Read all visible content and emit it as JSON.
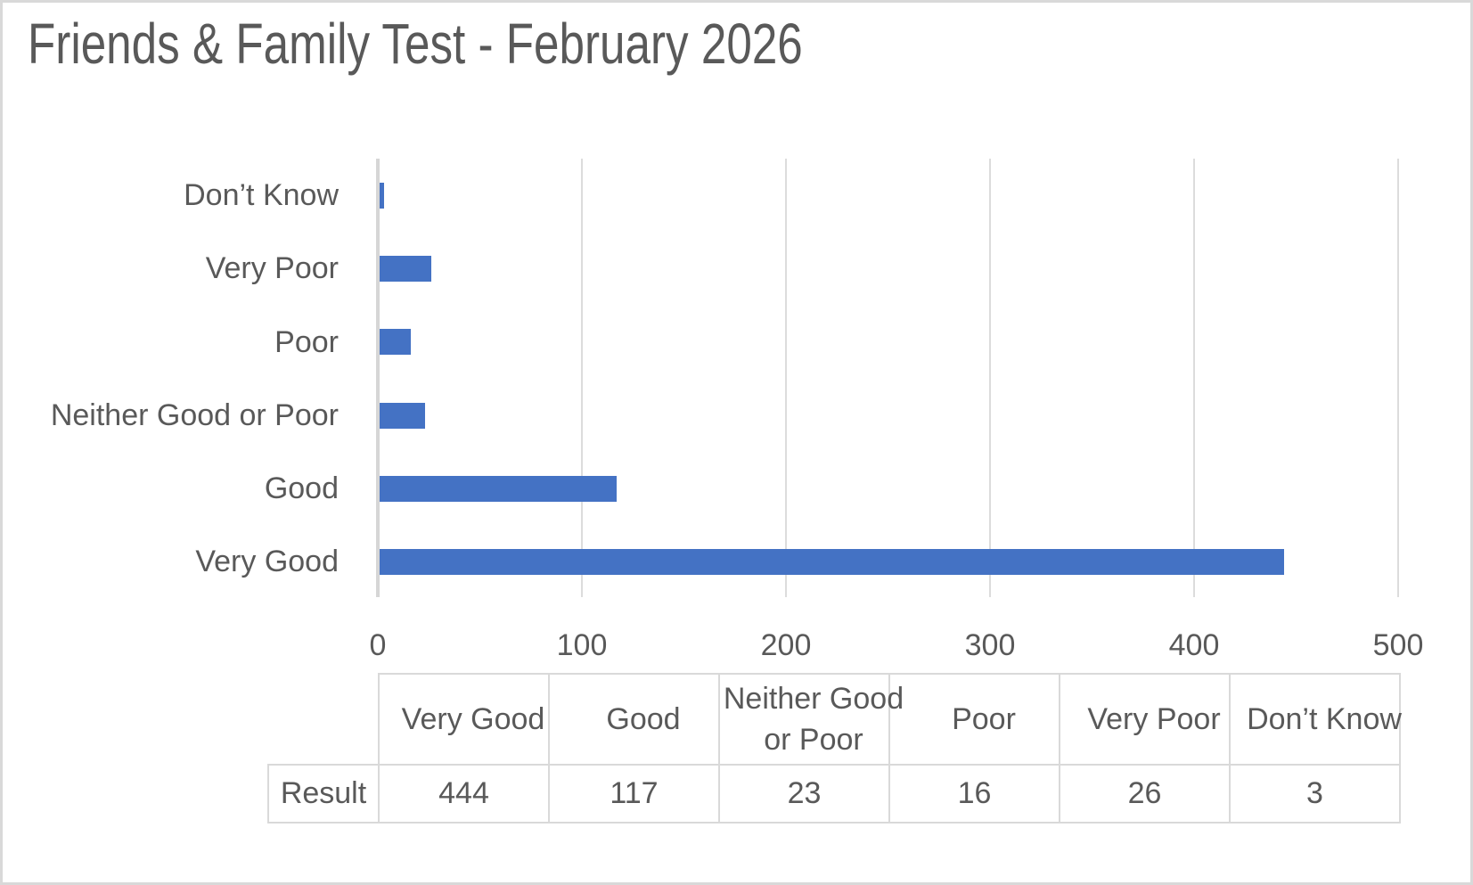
{
  "frame": {
    "background": "#ffffff",
    "border_color": "#d9d9d9"
  },
  "header": {
    "title": "Friends & Family Test - February 2026",
    "color": "#595959"
  },
  "chart_data": {
    "type": "bar",
    "orientation": "horizontal",
    "title": "Friends & Family Test - February 2026",
    "categories": [
      "Don’t Know",
      "Very Poor",
      "Poor",
      "Neither Good or Poor",
      "Good",
      "Very Good"
    ],
    "category_order": "top-to-bottom",
    "series": [
      {
        "name": "Result",
        "values": [
          3,
          26,
          16,
          23,
          117,
          444
        ]
      }
    ],
    "xlabel": "",
    "ylabel": "",
    "x_axis": {
      "min": 0,
      "max": 500,
      "tick_step": 100,
      "tick_labels": [
        "0",
        "100",
        "200",
        "300",
        "400",
        "500"
      ]
    },
    "grid": {
      "vertical_gridlines": true,
      "gridline_color": "#dcdcdc",
      "axis_line_color": "#d6d6d6"
    },
    "legend": "none",
    "bar_color": "#4472c4",
    "text_color": "#595959"
  },
  "table": {
    "border_color": "#d9d9d9",
    "column_headers": [
      "Very Good",
      "Good",
      "Neither Good or Poor",
      "Poor",
      "Very Poor",
      "Don’t Know"
    ],
    "rows": [
      {
        "label": "Result",
        "values": [
          "444",
          "117",
          "23",
          "16",
          "26",
          "3"
        ]
      }
    ]
  }
}
